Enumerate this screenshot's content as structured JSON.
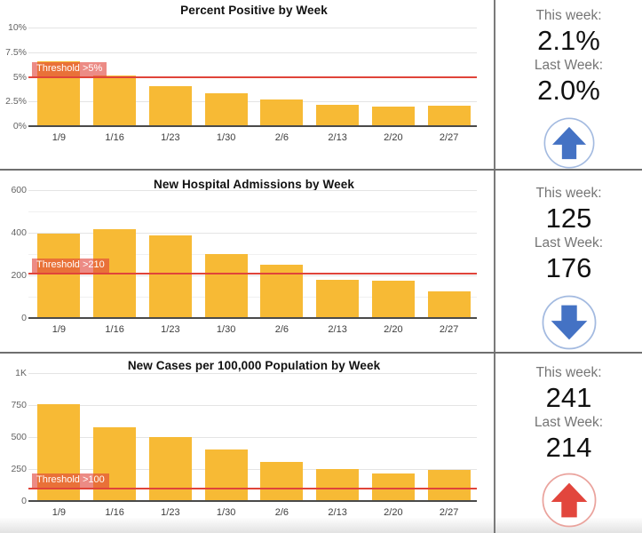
{
  "colors": {
    "bar": "#F7BA35",
    "threshold_line": "#E0443A",
    "threshold_label_bg": "rgba(224,68,58,0.62)",
    "threshold_label_text": "#FFFFFF",
    "trend_blue": "#4472C4",
    "trend_blue_ring": "#A3BAE0",
    "trend_red": "#E2463D",
    "trend_red_ring": "#EAA39D"
  },
  "chart_data": [
    {
      "type": "bar",
      "title": "Percent Positive by Week",
      "categories": [
        "1/9",
        "1/16",
        "1/23",
        "1/30",
        "2/6",
        "2/13",
        "2/20",
        "2/27"
      ],
      "values": [
        6.6,
        5.1,
        4.1,
        3.3,
        2.7,
        2.2,
        2.0,
        2.1
      ],
      "ylim": [
        0,
        10
      ],
      "yticks": [
        {
          "value": 0,
          "label": "0%"
        },
        {
          "value": 2.5,
          "label": "2.5%"
        },
        {
          "value": 5,
          "label": "5%"
        },
        {
          "value": 7.5,
          "label": "7.5%"
        },
        {
          "value": 10,
          "label": "10%"
        }
      ],
      "threshold": {
        "value": 5,
        "label": "Threshold >5%"
      },
      "summary": {
        "this_week_label": "This week:",
        "this_week_value": "2.1%",
        "last_week_label": "Last Week:",
        "last_week_value": "2.0%",
        "trend": "up",
        "trend_color": "blue"
      }
    },
    {
      "type": "bar",
      "title": "New Hospital Admissions by Week",
      "categories": [
        "1/9",
        "1/16",
        "1/23",
        "1/30",
        "2/6",
        "2/13",
        "2/20",
        "2/27"
      ],
      "values": [
        395,
        417,
        386,
        302,
        250,
        180,
        176,
        125
      ],
      "ylim": [
        0,
        600
      ],
      "yticks": [
        {
          "value": 0,
          "label": "0"
        },
        {
          "value": 200,
          "label": "200"
        },
        {
          "value": 400,
          "label": "400"
        },
        {
          "value": 600,
          "label": "600"
        }
      ],
      "yticks_minor": [
        100,
        300,
        500
      ],
      "threshold": {
        "value": 210,
        "label": "Threshold >210"
      },
      "summary": {
        "this_week_label": "This week:",
        "this_week_value": "125",
        "last_week_label": "Last Week:",
        "last_week_value": "176",
        "trend": "down",
        "trend_color": "blue"
      }
    },
    {
      "type": "bar",
      "title": "New Cases per 100,000 Population by Week",
      "categories": [
        "1/9",
        "1/16",
        "1/23",
        "1/30",
        "2/6",
        "2/13",
        "2/20",
        "2/27"
      ],
      "values": [
        760,
        575,
        500,
        400,
        305,
        250,
        214,
        241
      ],
      "ylim": [
        0,
        1000
      ],
      "yticks": [
        {
          "value": 0,
          "label": "0"
        },
        {
          "value": 250,
          "label": "250"
        },
        {
          "value": 500,
          "label": "500"
        },
        {
          "value": 750,
          "label": "750"
        },
        {
          "value": 1000,
          "label": "1K"
        }
      ],
      "threshold": {
        "value": 100,
        "label": "Threshold >100"
      },
      "summary": {
        "this_week_label": "This week:",
        "this_week_value": "241",
        "last_week_label": "Last Week:",
        "last_week_value": "214",
        "trend": "up",
        "trend_color": "red"
      }
    }
  ]
}
